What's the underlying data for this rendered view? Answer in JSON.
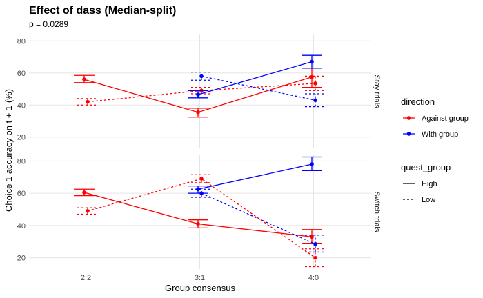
{
  "chart_data": {
    "type": "line",
    "title": "Effect of dass (Median-split)",
    "subtitle": "p = 0.0289",
    "xlabel": "Group consensus",
    "ylabel": "Choice 1 accuracy on t + 1 (%)",
    "categories": [
      "2:2",
      "3:1",
      "4:0"
    ],
    "ylim": [
      13,
      84
    ],
    "yticks": [
      20,
      40,
      60,
      80
    ],
    "grid": true,
    "facets": [
      {
        "name": "Stay trials",
        "series": [
          {
            "direction": "Against group",
            "quest_group": "High",
            "values": [
              56,
              35.5,
              57.5
            ],
            "error": [
              [
                54,
                58.5
              ],
              [
                32.5,
                38
              ],
              [
                51,
                63
              ]
            ]
          },
          {
            "direction": "Against group",
            "quest_group": "Low",
            "values": [
              42,
              49,
              53.5
            ],
            "error": [
              [
                40,
                44
              ],
              [
                47,
                51
              ],
              [
                49,
                58
              ]
            ]
          },
          {
            "direction": "With group",
            "quest_group": "High",
            "values": [
              null,
              46.5,
              67
            ],
            "error": [
              null,
              [
                44.5,
                49
              ],
              [
                63,
                71
              ]
            ]
          },
          {
            "direction": "With group",
            "quest_group": "Low",
            "values": [
              null,
              58,
              43
            ],
            "error": [
              null,
              [
                55.5,
                60.5
              ],
              [
                39,
                47
              ]
            ]
          }
        ]
      },
      {
        "name": "Switch trials",
        "series": [
          {
            "direction": "Against group",
            "quest_group": "High",
            "values": [
              60.5,
              41,
              33
            ],
            "error": [
              [
                58.5,
                62.5
              ],
              [
                38.5,
                43.5
              ],
              [
                29,
                37.5
              ]
            ]
          },
          {
            "direction": "Against group",
            "quest_group": "Low",
            "values": [
              49,
              69,
              20
            ],
            "error": [
              [
                47,
                51
              ],
              [
                66.5,
                71.5
              ],
              [
                14.5,
                25.5
              ]
            ]
          },
          {
            "direction": "With group",
            "quest_group": "High",
            "values": [
              null,
              62.5,
              78
            ],
            "error": [
              null,
              [
                60,
                64.5
              ],
              [
                74,
                82.5
              ]
            ]
          },
          {
            "direction": "With group",
            "quest_group": "Low",
            "values": [
              null,
              60,
              28.5
            ],
            "error": [
              null,
              [
                57.5,
                62.5
              ],
              [
                23.5,
                34
              ]
            ]
          }
        ]
      }
    ],
    "legend": {
      "placement": "right",
      "color_title": "direction",
      "color_items": [
        {
          "label": "Against group",
          "color": "#ff0000"
        },
        {
          "label": "With group",
          "color": "#0000ff"
        }
      ],
      "linetype_title": "quest_group",
      "linetype_items": [
        {
          "label": "High",
          "dash": "solid"
        },
        {
          "label": "Low",
          "dash": "dashed"
        }
      ]
    }
  }
}
